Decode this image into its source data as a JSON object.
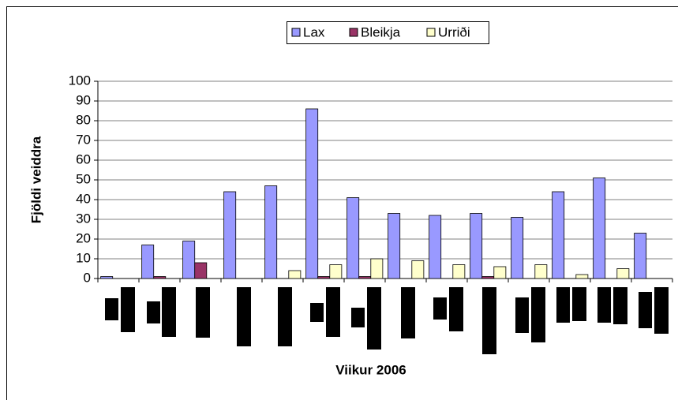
{
  "chart_data": {
    "type": "bar",
    "ylabel": "Fjöldi veiddra",
    "xlabel": "Viikur 2006",
    "categories": [
      null,
      null,
      null,
      null,
      null,
      null,
      null,
      null,
      null,
      null,
      null,
      null,
      null,
      null
    ],
    "series": [
      {
        "name": "Lax",
        "color": "#9999ff",
        "values": [
          1,
          17,
          19,
          44,
          47,
          86,
          41,
          33,
          32,
          33,
          31,
          44,
          51,
          23
        ]
      },
      {
        "name": "Bleikja",
        "color": "#993366",
        "values": [
          0,
          1,
          8,
          0,
          0,
          1,
          1,
          0,
          0,
          1,
          0,
          0,
          0,
          0
        ]
      },
      {
        "name": "Urriði",
        "color": "#ffffcc",
        "values": [
          0,
          0,
          0,
          0,
          4,
          7,
          10,
          9,
          7,
          6,
          7,
          2,
          5,
          0
        ]
      }
    ],
    "ylim": [
      0,
      100
    ],
    "yticks": [
      0,
      10,
      20,
      30,
      40,
      50,
      60,
      70,
      80,
      90,
      100
    ],
    "grid": true,
    "legend": "top"
  }
}
